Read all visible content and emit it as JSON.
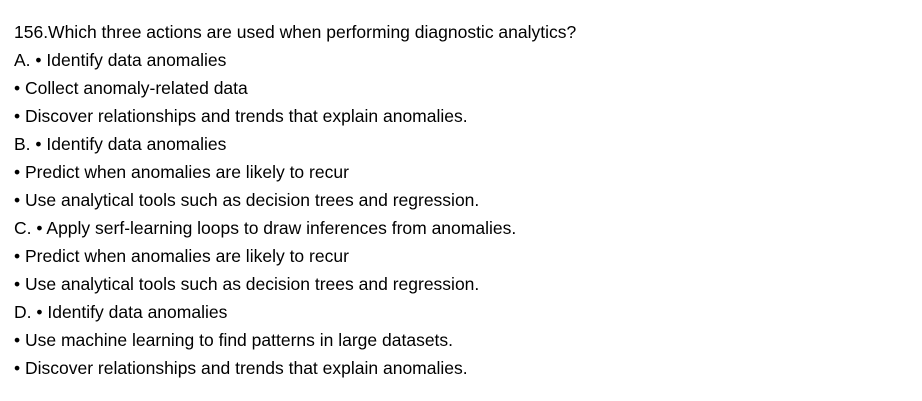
{
  "question": {
    "text": "156.Which three actions are used when performing diagnostic analytics?"
  },
  "options": [
    {
      "letter": "A.",
      "items": [
        "Identify data anomalies",
        "Collect anomaly-related data",
        "Discover relationships and trends that explain anomalies."
      ]
    },
    {
      "letter": "B.",
      "items": [
        "Identify data anomalies",
        "Predict when anomalies are likely to recur",
        "Use analytical tools such as decision trees and regression."
      ]
    },
    {
      "letter": "C.",
      "items": [
        "Apply serf-learning loops to draw inferences from anomalies.",
        "Predict when anomalies are likely to recur",
        "Use analytical tools such as decision trees and regression."
      ]
    },
    {
      "letter": "D.",
      "items": [
        "Identify data anomalies",
        "Use machine learning to find patterns in large datasets.",
        "Discover relationships and trends that explain anomalies."
      ]
    }
  ]
}
